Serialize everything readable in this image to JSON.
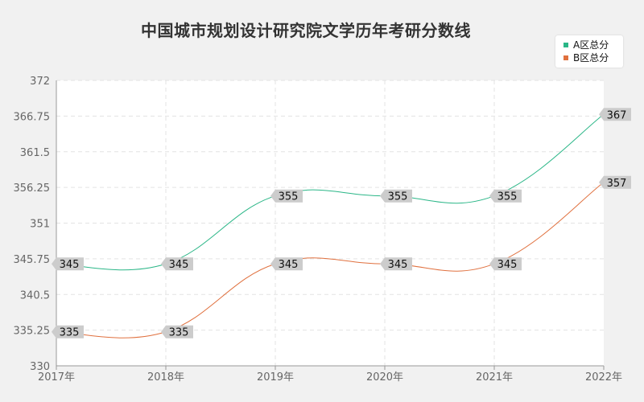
{
  "chart_data": {
    "type": "line",
    "title": "中国城市规划设计研究院文学历年考研分数线",
    "xlabel": "",
    "ylabel": "",
    "categories": [
      "2017年",
      "2018年",
      "2019年",
      "2020年",
      "2021年",
      "2022年"
    ],
    "ylim": [
      330,
      372
    ],
    "yticks": [
      "330",
      "335.25",
      "340.5",
      "345.75",
      "351",
      "356.25",
      "361.5",
      "366.75",
      "372"
    ],
    "grid": true,
    "legend_position": "top-right",
    "series": [
      {
        "name": "A区总分",
        "color": "#2ab687",
        "values": [
          345,
          345,
          355,
          355,
          355,
          367
        ]
      },
      {
        "name": "B区总分",
        "color": "#e0703e",
        "values": [
          335,
          335,
          345,
          345,
          345,
          357
        ]
      }
    ]
  }
}
